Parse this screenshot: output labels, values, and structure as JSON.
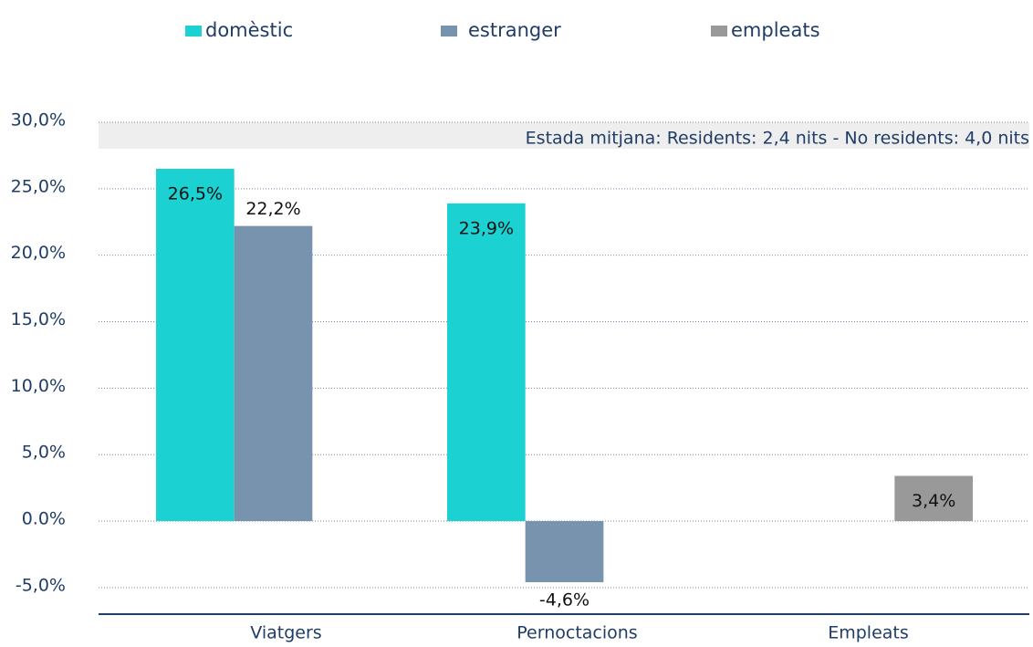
{
  "chart_data": {
    "type": "bar",
    "categories": [
      "Viatgers",
      "Pernoctacions",
      "Empleats"
    ],
    "series": [
      {
        "name": "domèstic",
        "color": "#1bd1d2",
        "values": [
          26.5,
          23.9,
          null
        ],
        "value_labels": [
          "26,5%",
          "23,9%",
          null
        ]
      },
      {
        "name": "estranger",
        "color": "#7793ae",
        "values": [
          22.2,
          -4.6,
          null
        ],
        "value_labels": [
          "22,2%",
          "-4,6%",
          null
        ]
      },
      {
        "name": "empleats",
        "color": "#999999",
        "values": [
          null,
          null,
          3.4
        ],
        "value_labels": [
          null,
          null,
          "3,4%"
        ]
      }
    ],
    "ylim": [
      -7,
      30
    ],
    "yticks": [
      {
        "value": -5,
        "label": "-5,0%"
      },
      {
        "value": 0,
        "label": "0.0%"
      },
      {
        "value": 5,
        "label": "5,0%"
      },
      {
        "value": 10,
        "label": "10,0%"
      },
      {
        "value": 15,
        "label": "15,0%"
      },
      {
        "value": 20,
        "label": "20,0%"
      },
      {
        "value": 25,
        "label": "25,0%"
      },
      {
        "value": 30,
        "label": "30,0%"
      }
    ],
    "grid": true,
    "annotation": "Estada mitjana: Residents: 2,4 nits - No residents: 4,0 nits"
  }
}
